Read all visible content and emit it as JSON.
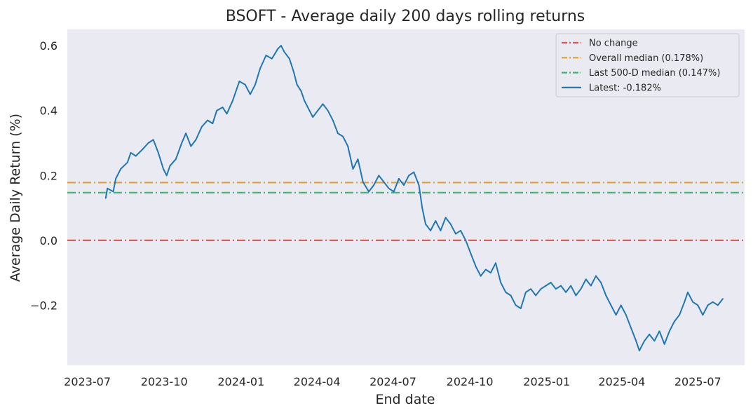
{
  "chart_data": {
    "type": "line",
    "title": "BSOFT - Average daily 200 days rolling returns",
    "xlabel": "End date",
    "ylabel": "Average Daily Return (%)",
    "x_range": [
      "2023-06-07",
      "2025-08-26"
    ],
    "ylim": [
      -0.385,
      0.65
    ],
    "grid": false,
    "legend_position": "top-right",
    "x_ticks": [
      {
        "date": "2023-07-01",
        "label": "2023-07"
      },
      {
        "date": "2023-10-01",
        "label": "2023-10"
      },
      {
        "date": "2024-01-01",
        "label": "2024-01"
      },
      {
        "date": "2024-04-01",
        "label": "2024-04"
      },
      {
        "date": "2024-07-01",
        "label": "2024-07"
      },
      {
        "date": "2024-10-01",
        "label": "2024-10"
      },
      {
        "date": "2025-01-01",
        "label": "2025-01"
      },
      {
        "date": "2025-04-01",
        "label": "2025-04"
      },
      {
        "date": "2025-07-01",
        "label": "2025-07"
      }
    ],
    "y_ticks": [
      {
        "value": 0.6,
        "label": "0.6"
      },
      {
        "value": 0.4,
        "label": "0.4"
      },
      {
        "value": 0.2,
        "label": "0.2"
      },
      {
        "value": 0.0,
        "label": "0.0"
      },
      {
        "value": -0.2,
        "label": "−0.2"
      }
    ],
    "reference_lines": [
      {
        "name": "No change",
        "value": 0.0,
        "color": "#d9534f",
        "style": "dashdot"
      },
      {
        "name": "Overall median (0.178%)",
        "value": 0.178,
        "color": "#e0a030",
        "style": "dashdot"
      },
      {
        "name": "Last 500-D median (0.147%)",
        "value": 0.147,
        "color": "#3cb371",
        "style": "dashdot"
      }
    ],
    "series": [
      {
        "name": "Latest: -0.182%",
        "color": "#1f77b4",
        "points": [
          [
            "2023-07-23",
            0.13
          ],
          [
            "2023-07-25",
            0.16
          ],
          [
            "2023-08-01",
            0.15
          ],
          [
            "2023-08-04",
            0.19
          ],
          [
            "2023-08-10",
            0.22
          ],
          [
            "2023-08-18",
            0.24
          ],
          [
            "2023-08-22",
            0.27
          ],
          [
            "2023-08-28",
            0.26
          ],
          [
            "2023-09-05",
            0.28
          ],
          [
            "2023-09-12",
            0.3
          ],
          [
            "2023-09-18",
            0.31
          ],
          [
            "2023-09-24",
            0.27
          ],
          [
            "2023-09-30",
            0.22
          ],
          [
            "2023-10-04",
            0.2
          ],
          [
            "2023-10-08",
            0.23
          ],
          [
            "2023-10-15",
            0.25
          ],
          [
            "2023-10-22",
            0.3
          ],
          [
            "2023-10-27",
            0.33
          ],
          [
            "2023-11-02",
            0.29
          ],
          [
            "2023-11-08",
            0.31
          ],
          [
            "2023-11-15",
            0.35
          ],
          [
            "2023-11-22",
            0.37
          ],
          [
            "2023-11-28",
            0.36
          ],
          [
            "2023-12-03",
            0.4
          ],
          [
            "2023-12-10",
            0.41
          ],
          [
            "2023-12-15",
            0.39
          ],
          [
            "2023-12-22",
            0.43
          ],
          [
            "2023-12-30",
            0.49
          ],
          [
            "2024-01-06",
            0.48
          ],
          [
            "2024-01-12",
            0.45
          ],
          [
            "2024-01-18",
            0.48
          ],
          [
            "2024-01-24",
            0.53
          ],
          [
            "2024-01-31",
            0.57
          ],
          [
            "2024-02-07",
            0.56
          ],
          [
            "2024-02-14",
            0.59
          ],
          [
            "2024-02-18",
            0.6
          ],
          [
            "2024-02-22",
            0.58
          ],
          [
            "2024-02-28",
            0.56
          ],
          [
            "2024-03-04",
            0.52
          ],
          [
            "2024-03-08",
            0.48
          ],
          [
            "2024-03-13",
            0.46
          ],
          [
            "2024-03-17",
            0.43
          ],
          [
            "2024-03-21",
            0.41
          ],
          [
            "2024-03-27",
            0.38
          ],
          [
            "2024-04-02",
            0.4
          ],
          [
            "2024-04-08",
            0.42
          ],
          [
            "2024-04-14",
            0.4
          ],
          [
            "2024-04-20",
            0.37
          ],
          [
            "2024-04-26",
            0.33
          ],
          [
            "2024-05-02",
            0.32
          ],
          [
            "2024-05-08",
            0.29
          ],
          [
            "2024-05-14",
            0.22
          ],
          [
            "2024-05-20",
            0.25
          ],
          [
            "2024-05-26",
            0.18
          ],
          [
            "2024-06-02",
            0.15
          ],
          [
            "2024-06-08",
            0.17
          ],
          [
            "2024-06-14",
            0.2
          ],
          [
            "2024-06-20",
            0.18
          ],
          [
            "2024-06-26",
            0.16
          ],
          [
            "2024-07-02",
            0.15
          ],
          [
            "2024-07-08",
            0.19
          ],
          [
            "2024-07-14",
            0.17
          ],
          [
            "2024-07-20",
            0.2
          ],
          [
            "2024-07-26",
            0.21
          ],
          [
            "2024-08-01",
            0.17
          ],
          [
            "2024-08-05",
            0.1
          ],
          [
            "2024-08-09",
            0.05
          ],
          [
            "2024-08-15",
            0.03
          ],
          [
            "2024-08-21",
            0.06
          ],
          [
            "2024-08-27",
            0.03
          ],
          [
            "2024-09-02",
            0.07
          ],
          [
            "2024-09-08",
            0.05
          ],
          [
            "2024-09-14",
            0.02
          ],
          [
            "2024-09-20",
            0.03
          ],
          [
            "2024-09-26",
            0.0
          ],
          [
            "2024-10-02",
            -0.04
          ],
          [
            "2024-10-08",
            -0.08
          ],
          [
            "2024-10-14",
            -0.11
          ],
          [
            "2024-10-20",
            -0.09
          ],
          [
            "2024-10-26",
            -0.1
          ],
          [
            "2024-11-01",
            -0.07
          ],
          [
            "2024-11-07",
            -0.13
          ],
          [
            "2024-11-13",
            -0.16
          ],
          [
            "2024-11-19",
            -0.17
          ],
          [
            "2024-11-25",
            -0.2
          ],
          [
            "2024-12-01",
            -0.21
          ],
          [
            "2024-12-07",
            -0.16
          ],
          [
            "2024-12-13",
            -0.15
          ],
          [
            "2024-12-19",
            -0.17
          ],
          [
            "2024-12-25",
            -0.15
          ],
          [
            "2024-12-31",
            -0.14
          ],
          [
            "2025-01-06",
            -0.13
          ],
          [
            "2025-01-12",
            -0.15
          ],
          [
            "2025-01-18",
            -0.14
          ],
          [
            "2025-01-24",
            -0.16
          ],
          [
            "2025-01-30",
            -0.14
          ],
          [
            "2025-02-05",
            -0.17
          ],
          [
            "2025-02-11",
            -0.15
          ],
          [
            "2025-02-17",
            -0.12
          ],
          [
            "2025-02-23",
            -0.14
          ],
          [
            "2025-03-01",
            -0.11
          ],
          [
            "2025-03-07",
            -0.13
          ],
          [
            "2025-03-13",
            -0.17
          ],
          [
            "2025-03-19",
            -0.2
          ],
          [
            "2025-03-25",
            -0.23
          ],
          [
            "2025-03-31",
            -0.2
          ],
          [
            "2025-04-06",
            -0.23
          ],
          [
            "2025-04-12",
            -0.27
          ],
          [
            "2025-04-18",
            -0.31
          ],
          [
            "2025-04-22",
            -0.34
          ],
          [
            "2025-04-28",
            -0.31
          ],
          [
            "2025-05-04",
            -0.29
          ],
          [
            "2025-05-10",
            -0.31
          ],
          [
            "2025-05-16",
            -0.28
          ],
          [
            "2025-05-22",
            -0.32
          ],
          [
            "2025-05-28",
            -0.28
          ],
          [
            "2025-06-03",
            -0.25
          ],
          [
            "2025-06-09",
            -0.23
          ],
          [
            "2025-06-15",
            -0.19
          ],
          [
            "2025-06-19",
            -0.16
          ],
          [
            "2025-06-25",
            -0.19
          ],
          [
            "2025-07-01",
            -0.2
          ],
          [
            "2025-07-07",
            -0.23
          ],
          [
            "2025-07-13",
            -0.2
          ],
          [
            "2025-07-19",
            -0.19
          ],
          [
            "2025-07-25",
            -0.2
          ],
          [
            "2025-07-31",
            -0.18
          ]
        ]
      }
    ]
  }
}
